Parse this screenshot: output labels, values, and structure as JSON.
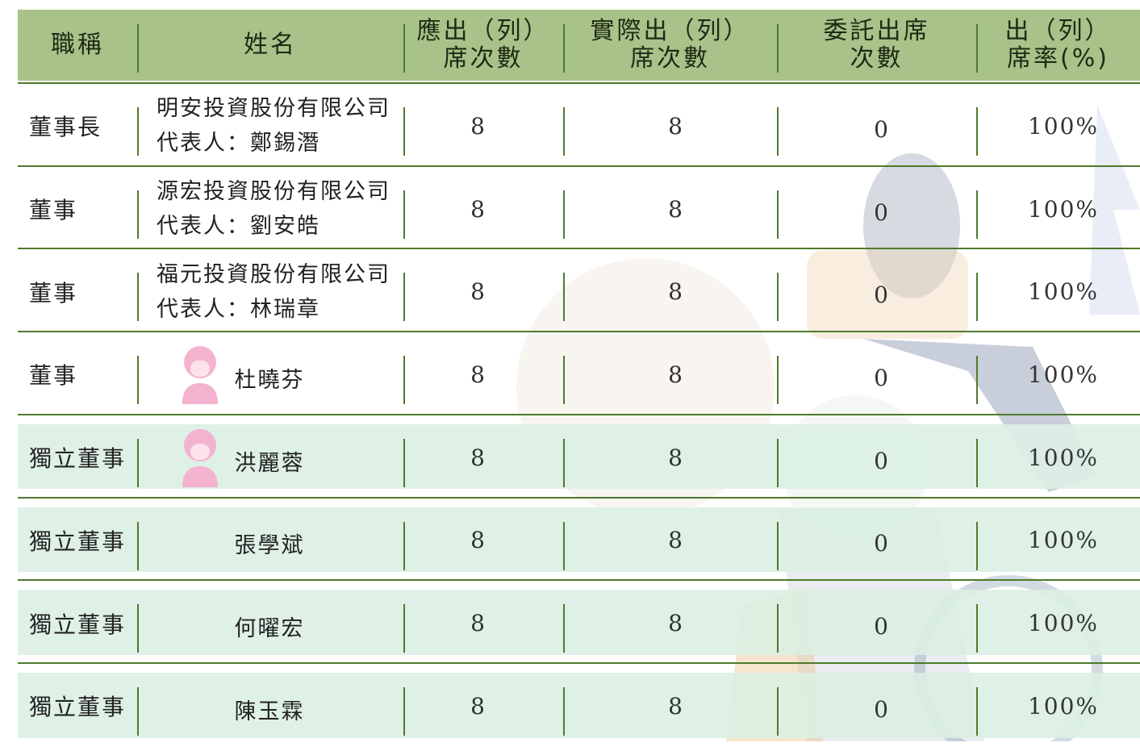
{
  "header": {
    "columns": [
      [
        "職稱"
      ],
      [
        "姓名"
      ],
      [
        "應出（列）",
        "席次數"
      ],
      [
        "實際出（列）",
        "席次數"
      ],
      [
        "委託出席",
        "次數"
      ],
      [
        "出（列）",
        "席率(%)"
      ]
    ]
  },
  "table": {
    "rows": [
      {
        "title": "董事長",
        "name": [
          "明安投資股份有限公司",
          "代表人：鄭錫潛"
        ],
        "required": 8,
        "actual": 8,
        "proxy": 0,
        "rate": "100%"
      },
      {
        "title": "董事",
        "name": [
          "源宏投資股份有限公司",
          "代表人：劉安皓"
        ],
        "required": 8,
        "actual": 8,
        "proxy": 0,
        "rate": "100%"
      },
      {
        "title": "董事",
        "name": [
          "福元投資股份有限公司",
          "代表人：林瑞章"
        ],
        "required": 8,
        "actual": 8,
        "proxy": 0,
        "rate": "100%"
      },
      {
        "title": "董事",
        "name": [
          "杜曉芬"
        ],
        "required": 8,
        "actual": 8,
        "proxy": 0,
        "rate": "100%"
      },
      {
        "title": "獨立董事",
        "name": [
          "洪麗蓉"
        ],
        "required": 8,
        "actual": 8,
        "proxy": 0,
        "rate": "100%"
      },
      {
        "title": "獨立董事",
        "name": [
          "張學斌"
        ],
        "required": 8,
        "actual": 8,
        "proxy": 0,
        "rate": "100%"
      },
      {
        "title": "獨立董事",
        "name": [
          "何曜宏"
        ],
        "required": 8,
        "actual": 8,
        "proxy": 0,
        "rate": "100%"
      },
      {
        "title": "獨立董事",
        "name": [
          "陳玉霖"
        ],
        "required": 8,
        "actual": 8,
        "proxy": 0,
        "rate": "100%"
      }
    ]
  }
}
